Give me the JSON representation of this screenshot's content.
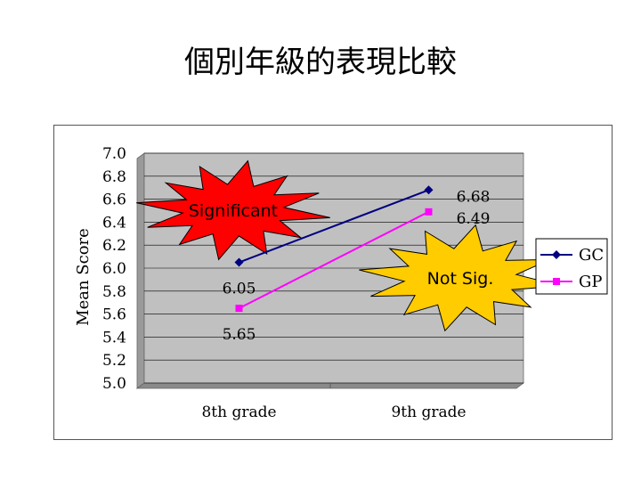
{
  "slide": {
    "title": "個別年級的表現比較"
  },
  "chart_data": {
    "type": "line",
    "categories": [
      "8th grade",
      "9th grade"
    ],
    "series": [
      {
        "name": "GC",
        "values": [
          6.05,
          6.68
        ],
        "color": "#000080",
        "marker": "diamond",
        "labels": [
          "6.05",
          "6.68"
        ]
      },
      {
        "name": "GP",
        "values": [
          5.65,
          6.49
        ],
        "color": "#ff00ff",
        "marker": "square",
        "labels": [
          "5.65",
          "6.49"
        ]
      }
    ],
    "ylabel": "Mean Score",
    "ylim": [
      5.0,
      7.0
    ],
    "yticks": [
      "5.0",
      "5.2",
      "5.4",
      "5.6",
      "5.8",
      "6.0",
      "6.2",
      "6.4",
      "6.6",
      "6.8",
      "7.0"
    ],
    "grid": true,
    "plot_background": "#c0c0c0",
    "legend": "right",
    "annotations": [
      {
        "text": "Significant",
        "style": "red starburst",
        "color": "#ff0000"
      },
      {
        "text": "Not Sig.",
        "style": "yellow starburst",
        "color": "#ffcc00"
      }
    ]
  }
}
